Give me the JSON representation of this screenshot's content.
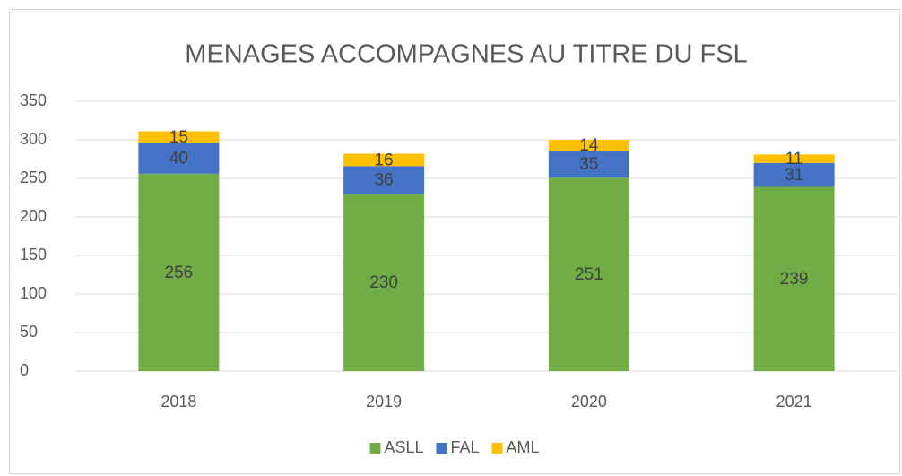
{
  "chart_data": {
    "type": "bar",
    "stacked": true,
    "title": "MENAGES ACCOMPAGNES AU TITRE DU FSL",
    "categories": [
      "2018",
      "2019",
      "2020",
      "2021"
    ],
    "series": [
      {
        "name": "ASLL",
        "color": "#70ad47",
        "values": [
          256,
          230,
          251,
          239
        ]
      },
      {
        "name": "FAL",
        "color": "#4472c4",
        "values": [
          40,
          36,
          35,
          31
        ]
      },
      {
        "name": "AML",
        "color": "#ffc000",
        "values": [
          15,
          16,
          14,
          11
        ]
      }
    ],
    "ylim": [
      0,
      350
    ],
    "yticks": [
      0,
      50,
      100,
      150,
      200,
      250,
      300,
      350
    ],
    "grid": true,
    "legend": "bottom"
  }
}
